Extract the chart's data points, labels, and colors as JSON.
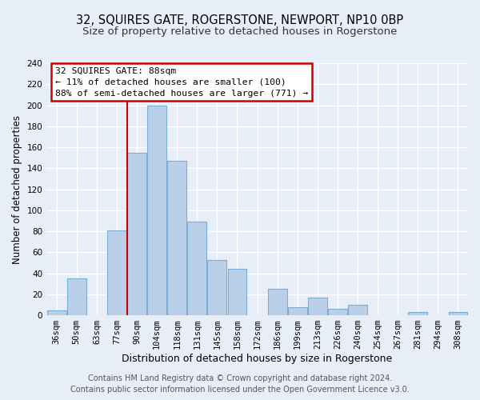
{
  "title": "32, SQUIRES GATE, ROGERSTONE, NEWPORT, NP10 0BP",
  "subtitle": "Size of property relative to detached houses in Rogerstone",
  "xlabel": "Distribution of detached houses by size in Rogerstone",
  "ylabel": "Number of detached properties",
  "categories": [
    "36sqm",
    "50sqm",
    "63sqm",
    "77sqm",
    "90sqm",
    "104sqm",
    "118sqm",
    "131sqm",
    "145sqm",
    "158sqm",
    "172sqm",
    "186sqm",
    "199sqm",
    "213sqm",
    "226sqm",
    "240sqm",
    "254sqm",
    "267sqm",
    "281sqm",
    "294sqm",
    "308sqm"
  ],
  "values": [
    5,
    35,
    0,
    81,
    155,
    200,
    147,
    89,
    53,
    44,
    0,
    25,
    8,
    17,
    6,
    10,
    0,
    0,
    3,
    0,
    3
  ],
  "bar_color": "#bad0e8",
  "bar_edge_color": "#7aadd4",
  "vline_color": "#cc0000",
  "vline_x_index": 4,
  "annotation_title": "32 SQUIRES GATE: 88sqm",
  "annotation_line1": "← 11% of detached houses are smaller (100)",
  "annotation_line2": "88% of semi-detached houses are larger (771) →",
  "annotation_box_facecolor": "#ffffff",
  "annotation_box_edgecolor": "#cc0000",
  "ylim": [
    0,
    240
  ],
  "yticks": [
    0,
    20,
    40,
    60,
    80,
    100,
    120,
    140,
    160,
    180,
    200,
    220,
    240
  ],
  "footer_line1": "Contains HM Land Registry data © Crown copyright and database right 2024.",
  "footer_line2": "Contains public sector information licensed under the Open Government Licence v3.0.",
  "bg_color": "#e8eef8",
  "plot_bg_color": "#e8eef8",
  "grid_color": "#ffffff",
  "title_fontsize": 10.5,
  "subtitle_fontsize": 9.5,
  "xlabel_fontsize": 9,
  "ylabel_fontsize": 8.5,
  "tick_fontsize": 7.5,
  "footer_fontsize": 7
}
